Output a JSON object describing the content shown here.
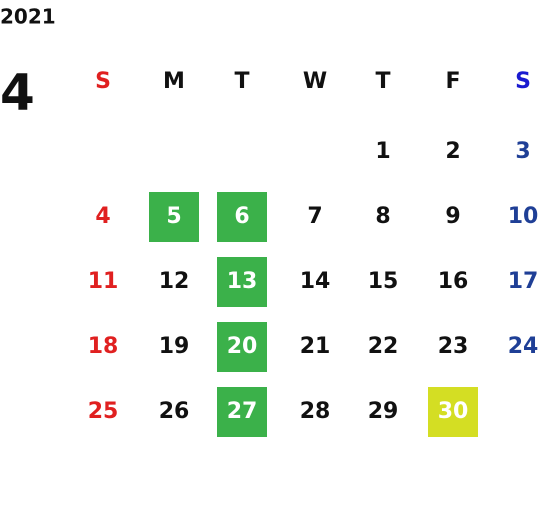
{
  "calendar": {
    "year": "2021",
    "month": "4",
    "weekdays": [
      {
        "label": "S",
        "color": "#e02020"
      },
      {
        "label": "M",
        "color": "#111111"
      },
      {
        "label": "T",
        "color": "#111111"
      },
      {
        "label": "W",
        "color": "#111111"
      },
      {
        "label": "T",
        "color": "#111111"
      },
      {
        "label": "F",
        "color": "#111111"
      },
      {
        "label": "S",
        "color": "#1a1ad0"
      }
    ],
    "day_colors": [
      "#e02020",
      "#111111",
      "#111111",
      "#111111",
      "#111111",
      "#111111",
      "#1f3f96"
    ],
    "highlight_text_color": "#ffffff",
    "weeks": [
      [
        null,
        null,
        null,
        null,
        {
          "text": "1"
        },
        {
          "text": "2"
        },
        {
          "text": "3"
        }
      ],
      [
        {
          "text": "4"
        },
        {
          "text": "5",
          "highlight": "#3bb14a"
        },
        {
          "text": "6",
          "highlight": "#3bb14a"
        },
        {
          "text": "7"
        },
        {
          "text": "8"
        },
        {
          "text": "9"
        },
        {
          "text": "10"
        }
      ],
      [
        {
          "text": "11"
        },
        {
          "text": "12"
        },
        {
          "text": "13",
          "highlight": "#3bb14a"
        },
        {
          "text": "14"
        },
        {
          "text": "15"
        },
        {
          "text": "16"
        },
        {
          "text": "17"
        }
      ],
      [
        {
          "text": "18"
        },
        {
          "text": "19"
        },
        {
          "text": "20",
          "highlight": "#3bb14a"
        },
        {
          "text": "21"
        },
        {
          "text": "22"
        },
        {
          "text": "23"
        },
        {
          "text": "24"
        }
      ],
      [
        {
          "text": "25"
        },
        {
          "text": "26"
        },
        {
          "text": "27",
          "highlight": "#3bb14a"
        },
        {
          "text": "28"
        },
        {
          "text": "29"
        },
        {
          "text": "30",
          "highlight": "#d4de23"
        },
        null
      ]
    ]
  }
}
